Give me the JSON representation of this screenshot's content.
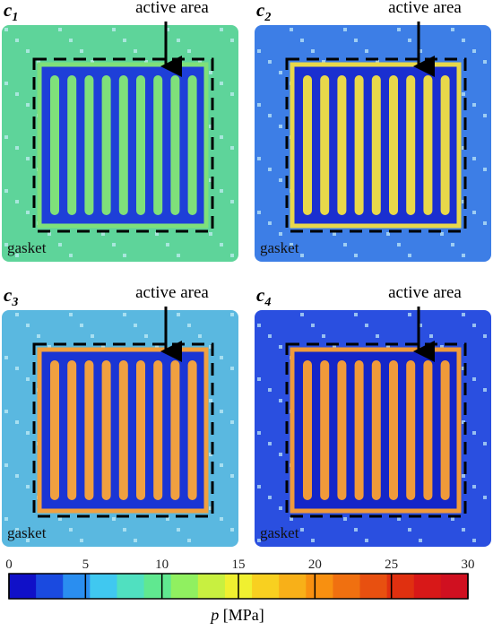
{
  "panels": [
    {
      "label": "c",
      "subscript": "1",
      "annotation": "active area",
      "region_label": "gasket",
      "background_color": "#5ed49a",
      "frame_color": "#1e3fd8",
      "stripe_color": "#7fe07a"
    },
    {
      "label": "c",
      "subscript": "2",
      "annotation": "active area",
      "region_label": "gasket",
      "background_color": "#3d7ee6",
      "frame_color": "#1a2fd0",
      "stripe_color": "#e8d84a"
    },
    {
      "label": "c",
      "subscript": "3",
      "annotation": "active area",
      "region_label": "gasket",
      "background_color": "#5ab8e0",
      "frame_color": "#1a35d4",
      "stripe_color": "#f0a040"
    },
    {
      "label": "c",
      "subscript": "4",
      "annotation": "active area",
      "region_label": "gasket",
      "background_color": "#2a4fe0",
      "frame_color": "#1426c8",
      "stripe_color": "#f09a3a"
    }
  ],
  "colorbar": {
    "label_symbol": "p",
    "label_unit": "[MPa]",
    "lim": [
      0,
      30
    ],
    "ticks": [
      0,
      5,
      10,
      15,
      20,
      25,
      30
    ],
    "colors": [
      "#1010c8",
      "#1a4ae0",
      "#2a8ef0",
      "#40c8f0",
      "#50e0c0",
      "#60e890",
      "#90f060",
      "#c8f040",
      "#f0f030",
      "#f8d020",
      "#f8b018",
      "#f89010",
      "#f07010",
      "#e85010",
      "#e03010",
      "#d81818",
      "#d01020"
    ]
  }
}
